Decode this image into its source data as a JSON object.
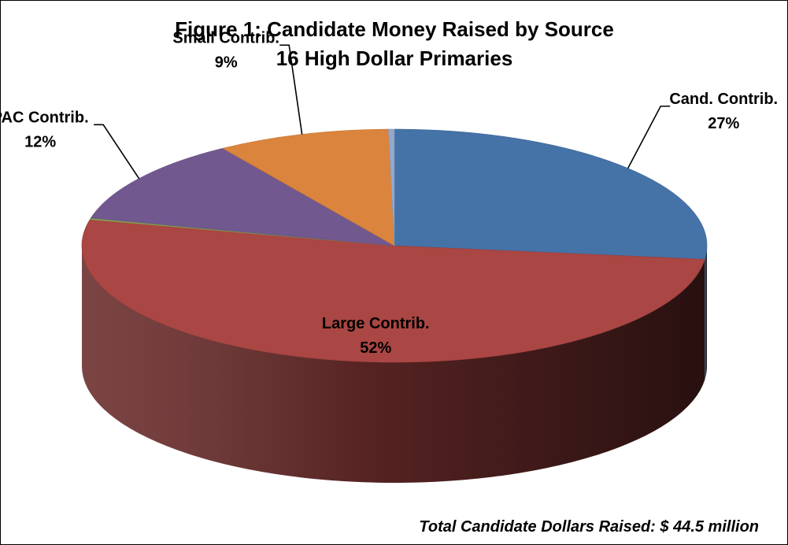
{
  "chart_data": {
    "type": "pie",
    "title": "Figure 1: Candidate Money Raised by Source",
    "subtitle": "16 High Dollar Primaries",
    "slices": [
      {
        "label": "Cand. Contrib.",
        "value": 27,
        "value_label": "27%",
        "color": "#4572A7"
      },
      {
        "label": "Large Contrib.",
        "value": 52,
        "value_label": "52%",
        "color": "#AA4643"
      },
      {
        "label": "",
        "value": 0.2,
        "value_label": "",
        "color": "#89A54E"
      },
      {
        "label": "PAC Contrib.",
        "value": 12,
        "value_label": "12%",
        "color": "#71588F"
      },
      {
        "label": "Small Contrib.",
        "value": 9,
        "value_label": "9%",
        "color": "#DB843D"
      },
      {
        "label": "",
        "value": 0.3,
        "value_label": "",
        "color": "#93A9CF"
      }
    ]
  },
  "footnote": "Total Candidate Dollars Raised: $ 44.5 million"
}
